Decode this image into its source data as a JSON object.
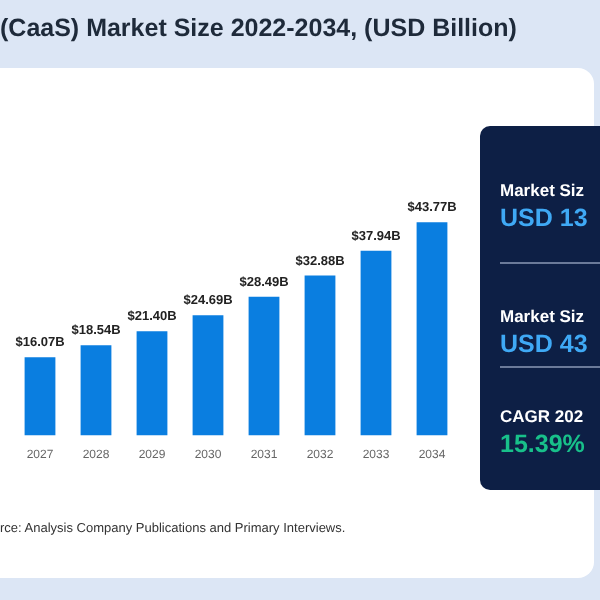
{
  "chart_data": [
    {
      "type": "bar",
      "title": "(CaaS) Market Size 2022-2034, (USD Billion)",
      "categories": [
        "2027",
        "2028",
        "2029",
        "2030",
        "2031",
        "2032",
        "2033",
        "2034"
      ],
      "values": [
        16.07,
        18.54,
        21.4,
        24.69,
        28.49,
        32.88,
        37.94,
        43.77
      ],
      "color": "#0a7ee0",
      "value_labels": [
        "$16.07B",
        "$18.54B",
        "$21.40B",
        "$24.69B",
        "$28.49B",
        "$32.88B",
        "$37.94B",
        "$43.77B"
      ],
      "annotations": [
        "rce: Analysis Company Publications and Primary Interviews."
      ]
    },
    {
      "type": "other",
      "annotations": [
        "Market Siz",
        "USD 13",
        "Market Siz",
        "USD 43",
        "CAGR 202",
        "15.39%"
      ]
    }
  ]
}
